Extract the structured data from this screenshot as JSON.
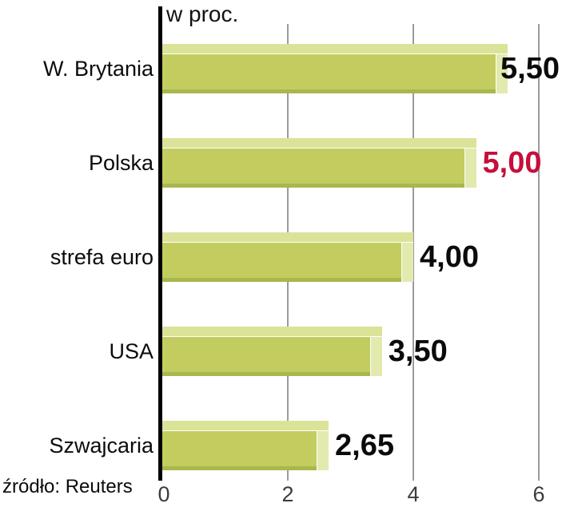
{
  "chart_data": {
    "type": "bar",
    "orientation": "horizontal",
    "title": "w proc.",
    "categories": [
      "W. Brytania",
      "Polska",
      "strefa euro",
      "USA",
      "Szwajcaria"
    ],
    "values": [
      5.5,
      5.0,
      4.0,
      3.5,
      2.65
    ],
    "value_labels": [
      "5,50",
      "5,00",
      "4,00",
      "3,50",
      "2,65"
    ],
    "value_label_colors": [
      "#0b0b0b",
      "#c50f3c",
      "#0b0b0b",
      "#0b0b0b",
      "#0b0b0b"
    ],
    "xlim": [
      0,
      6
    ],
    "x_ticks": [
      0,
      2,
      4,
      6
    ],
    "x_tick_labels": [
      "0",
      "2",
      "4",
      "6"
    ],
    "grid": "vertical-only",
    "legend": "none",
    "source": "źródło: Reuters",
    "colors": {
      "bar": "#c3cd5f",
      "bar_bevel": "#dbe399",
      "bar_cap": "#e3eaae",
      "bar_bottom": "#a9b74d",
      "gridline": "#9b9b9b",
      "axis": "#000000",
      "highlight_value": "#c50f3c"
    }
  }
}
